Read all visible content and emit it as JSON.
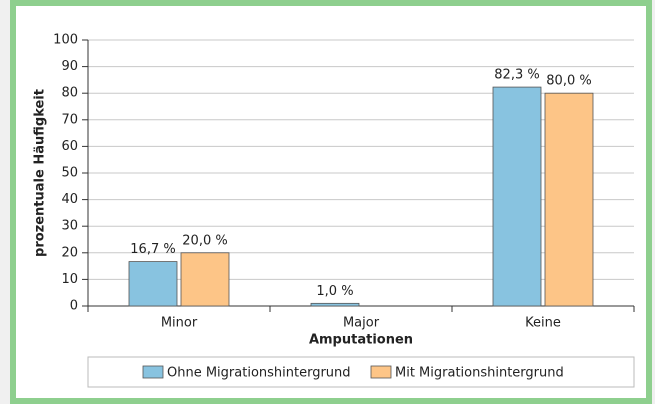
{
  "chart_data": {
    "type": "bar",
    "categories": [
      "Minor",
      "Major",
      "Keine"
    ],
    "series": [
      {
        "name": "Ohne Migrationshintergrund",
        "color": "#88c3e0",
        "values": [
          16.7,
          1.0,
          82.3
        ],
        "value_labels": [
          "16,7 %",
          "1,0 %",
          "82,3 %"
        ]
      },
      {
        "name": "Mit Migrationshintergrund",
        "color": "#fdc587",
        "values": [
          20.0,
          null,
          80.0
        ],
        "value_labels": [
          "20,0 %",
          null,
          "80,0 %"
        ]
      }
    ],
    "xlabel": "Amputationen",
    "ylabel": "prozentuale Häufigkeit",
    "ylim": [
      0,
      100
    ],
    "yticks": [
      0,
      10,
      20,
      30,
      40,
      50,
      60,
      70,
      80,
      90,
      100
    ],
    "grid": true,
    "legend": "bottom"
  }
}
